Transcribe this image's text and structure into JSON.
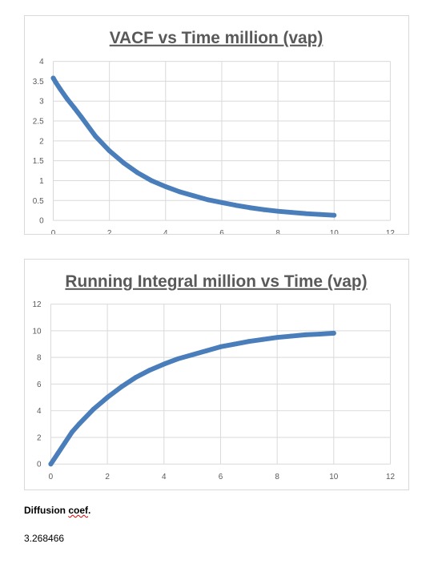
{
  "chart_data": [
    {
      "type": "scatter",
      "title": "VACF vs Time million (vap)",
      "xlabel": "",
      "ylabel": "",
      "xlim": [
        0,
        12
      ],
      "ylim": [
        0,
        4
      ],
      "xticks": [
        0,
        2,
        4,
        6,
        8,
        10,
        12
      ],
      "yticks": [
        0,
        0.5,
        1,
        1.5,
        2,
        2.5,
        3,
        3.5,
        4
      ],
      "grid": true,
      "legend": "none",
      "series_color": "#4a7ebb",
      "series": [
        {
          "x": [
            0,
            0.1,
            0.25,
            0.5,
            0.75,
            1,
            1.5,
            2,
            2.5,
            3,
            3.5,
            4,
            4.5,
            5,
            5.5,
            6,
            6.5,
            7,
            7.5,
            8,
            8.5,
            9,
            9.5,
            10
          ],
          "values": [
            3.58,
            3.46,
            3.3,
            3.05,
            2.83,
            2.6,
            2.12,
            1.75,
            1.45,
            1.2,
            1.0,
            0.85,
            0.72,
            0.62,
            0.52,
            0.45,
            0.38,
            0.32,
            0.27,
            0.23,
            0.2,
            0.17,
            0.15,
            0.13
          ]
        }
      ]
    },
    {
      "type": "scatter",
      "title": "Running Integral million vs Time (vap)",
      "xlabel": "",
      "ylabel": "",
      "xlim": [
        0,
        12
      ],
      "ylim": [
        0,
        12
      ],
      "xticks": [
        0,
        2,
        4,
        6,
        8,
        10,
        12
      ],
      "yticks": [
        0,
        2,
        4,
        6,
        8,
        10,
        12
      ],
      "grid": true,
      "legend": "none",
      "series_color": "#4a7ebb",
      "series": [
        {
          "x": [
            0,
            0.25,
            0.5,
            0.75,
            1,
            1.5,
            2,
            2.5,
            3,
            3.5,
            4,
            4.5,
            5,
            5.5,
            6,
            6.5,
            7,
            7.5,
            8,
            8.5,
            9,
            9.5,
            10
          ],
          "values": [
            0,
            0.8,
            1.6,
            2.4,
            3.0,
            4.1,
            5.0,
            5.8,
            6.5,
            7.05,
            7.5,
            7.9,
            8.2,
            8.5,
            8.8,
            9.0,
            9.2,
            9.35,
            9.5,
            9.6,
            9.7,
            9.75,
            9.82
          ]
        }
      ]
    }
  ],
  "diffusion": {
    "label_text": "Diffusion ",
    "label_misspelled": "coef",
    "label_end": ".",
    "value": "3.268466"
  }
}
